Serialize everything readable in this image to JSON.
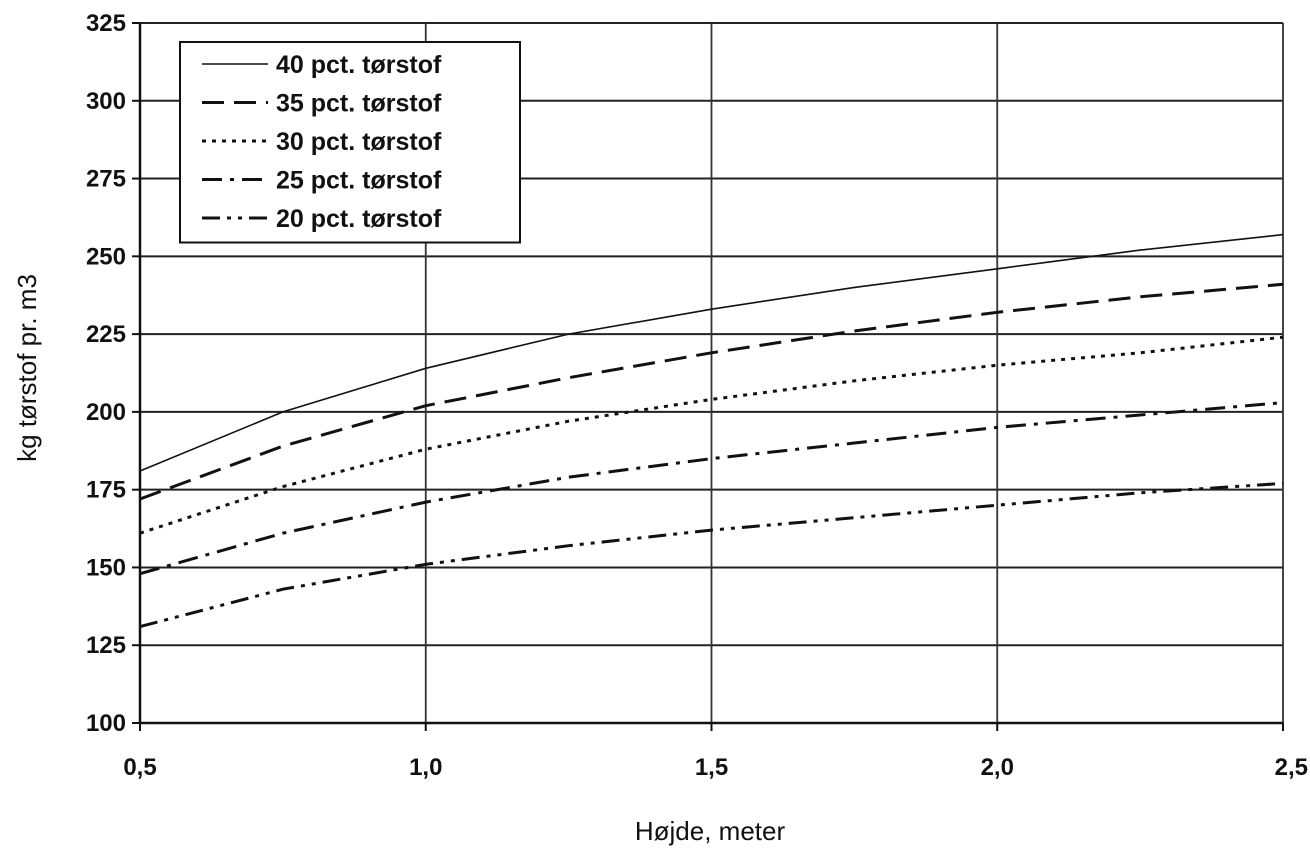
{
  "chart_data": {
    "type": "line",
    "title": "",
    "xlabel": "Højde, meter",
    "ylabel": "kg tørstof pr. m3",
    "xlim": [
      0.5,
      2.5
    ],
    "ylim": [
      100,
      325
    ],
    "x_ticks": [
      0.5,
      1.0,
      1.5,
      2.0,
      2.5
    ],
    "x_tick_labels": [
      "0,5",
      "1,0",
      "1,5",
      "2,0",
      "2,5"
    ],
    "y_ticks": [
      100,
      125,
      150,
      175,
      200,
      225,
      250,
      275,
      300,
      325
    ],
    "y_tick_labels": [
      "100",
      "125",
      "150",
      "175",
      "200",
      "225",
      "250",
      "275",
      "300",
      "325"
    ],
    "grid": true,
    "legend_position": "top-left",
    "x": [
      0.5,
      0.75,
      1.0,
      1.25,
      1.5,
      1.75,
      2.0,
      2.25,
      2.5
    ],
    "series": [
      {
        "name": "40 pct. tørstof",
        "line_style": "solid",
        "values": [
          181,
          200,
          214,
          225,
          233,
          240,
          246,
          252,
          257
        ]
      },
      {
        "name": "35 pct. tørstof",
        "line_style": "dashed",
        "values": [
          172,
          189,
          202,
          211,
          219,
          226,
          232,
          237,
          241
        ]
      },
      {
        "name": "30 pct. tørstof",
        "line_style": "dotted",
        "values": [
          161,
          176,
          188,
          197,
          204,
          210,
          215,
          219,
          224
        ]
      },
      {
        "name": "25 pct. tørstof",
        "line_style": "dash-dot",
        "values": [
          148,
          161,
          171,
          179,
          185,
          190,
          195,
          199,
          203
        ]
      },
      {
        "name": "20 pct. tørstof",
        "line_style": "dash-dot-dot",
        "values": [
          131,
          143,
          151,
          157,
          162,
          166,
          170,
          174,
          177
        ]
      }
    ]
  }
}
